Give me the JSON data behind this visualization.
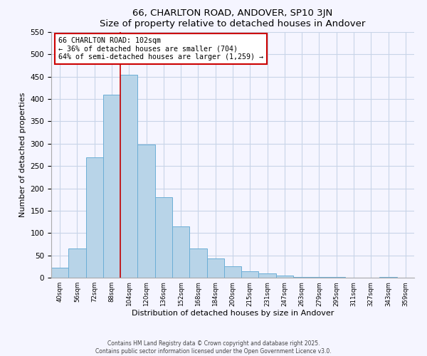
{
  "title": "66, CHARLTON ROAD, ANDOVER, SP10 3JN",
  "subtitle": "Size of property relative to detached houses in Andover",
  "xlabel": "Distribution of detached houses by size in Andover",
  "ylabel": "Number of detached properties",
  "bar_labels": [
    "40sqm",
    "56sqm",
    "72sqm",
    "88sqm",
    "104sqm",
    "120sqm",
    "136sqm",
    "152sqm",
    "168sqm",
    "184sqm",
    "200sqm",
    "215sqm",
    "231sqm",
    "247sqm",
    "263sqm",
    "279sqm",
    "295sqm",
    "311sqm",
    "327sqm",
    "343sqm",
    "359sqm"
  ],
  "bar_values": [
    22,
    65,
    270,
    410,
    455,
    298,
    180,
    115,
    65,
    43,
    25,
    14,
    10,
    5,
    2,
    1,
    1,
    0,
    0,
    1,
    0
  ],
  "bar_color": "#b8d4e8",
  "bar_edge_color": "#6baed6",
  "vline_x": 4,
  "vline_color": "#cc0000",
  "annotation_title": "66 CHARLTON ROAD: 102sqm",
  "annotation_line1": "← 36% of detached houses are smaller (704)",
  "annotation_line2": "64% of semi-detached houses are larger (1,259) →",
  "annotation_box_color": "#ffffff",
  "annotation_box_edge_color": "#cc0000",
  "ylim": [
    0,
    550
  ],
  "yticks": [
    0,
    50,
    100,
    150,
    200,
    250,
    300,
    350,
    400,
    450,
    500,
    550
  ],
  "footer1": "Contains HM Land Registry data © Crown copyright and database right 2025.",
  "footer2": "Contains public sector information licensed under the Open Government Licence v3.0.",
  "bg_color": "#f5f5ff",
  "grid_color": "#c8d4e8"
}
